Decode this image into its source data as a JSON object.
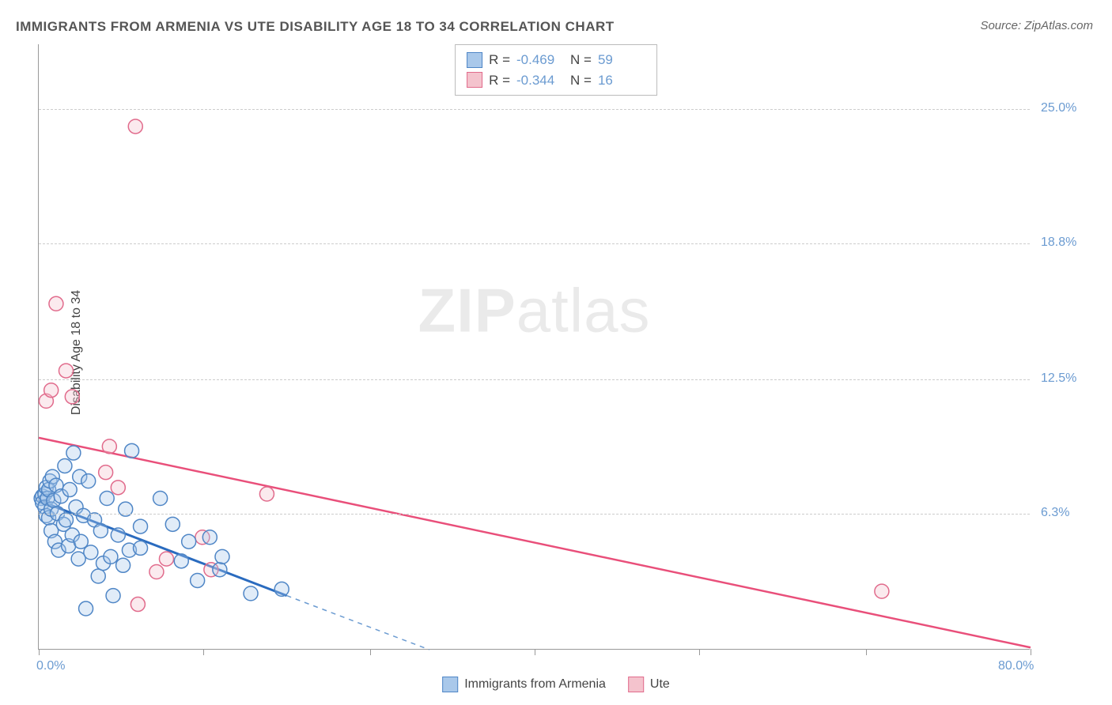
{
  "title": "IMMIGRANTS FROM ARMENIA VS UTE DISABILITY AGE 18 TO 34 CORRELATION CHART",
  "source": "Source: ZipAtlas.com",
  "ylabel": "Disability Age 18 to 34",
  "watermark_a": "ZIP",
  "watermark_b": "atlas",
  "chart": {
    "type": "scatter",
    "xlim": [
      0,
      80
    ],
    "ylim": [
      0,
      28
    ],
    "xtick_positions": [
      0,
      13.3,
      26.7,
      40,
      53.3,
      66.7,
      80
    ],
    "xtick_labels_shown": {
      "0": "0.0%",
      "80": "80.0%"
    },
    "ytick_positions": [
      6.3,
      12.5,
      18.8,
      25.0
    ],
    "ytick_labels": [
      "6.3%",
      "12.5%",
      "18.8%",
      "25.0%"
    ],
    "grid_color": "#cccccc",
    "axis_color": "#999999",
    "background_color": "#ffffff",
    "marker_radius": 9,
    "marker_stroke_width": 1.5,
    "marker_fill_opacity": 0.35,
    "series": [
      {
        "name": "Immigrants from Armenia",
        "color_fill": "#a9c8ea",
        "color_stroke": "#4f86c6",
        "trend_color": "#2a6bbf",
        "trend_width": 3,
        "trend_dash_color": "#6b9bd1",
        "R": "-0.469",
        "N": "59",
        "trend_start": [
          0,
          6.9
        ],
        "trend_solid_end": [
          20,
          2.5
        ],
        "trend_dash_end": [
          31.5,
          0
        ],
        "points": [
          [
            0.2,
            7.0
          ],
          [
            0.3,
            7.1
          ],
          [
            0.3,
            6.8
          ],
          [
            0.5,
            7.2
          ],
          [
            0.5,
            6.6
          ],
          [
            0.6,
            7.5
          ],
          [
            0.6,
            6.2
          ],
          [
            0.7,
            7.0
          ],
          [
            0.8,
            7.4
          ],
          [
            0.8,
            6.1
          ],
          [
            0.9,
            7.8
          ],
          [
            1.0,
            6.5
          ],
          [
            1.0,
            5.5
          ],
          [
            1.1,
            8.0
          ],
          [
            1.2,
            6.9
          ],
          [
            1.3,
            5.0
          ],
          [
            1.4,
            7.6
          ],
          [
            1.5,
            6.3
          ],
          [
            1.6,
            4.6
          ],
          [
            1.8,
            7.1
          ],
          [
            2.0,
            5.8
          ],
          [
            2.1,
            8.5
          ],
          [
            2.2,
            6.0
          ],
          [
            2.4,
            4.8
          ],
          [
            2.5,
            7.4
          ],
          [
            2.7,
            5.3
          ],
          [
            2.8,
            9.1
          ],
          [
            3.0,
            6.6
          ],
          [
            3.2,
            4.2
          ],
          [
            3.3,
            8.0
          ],
          [
            3.4,
            5.0
          ],
          [
            3.6,
            6.2
          ],
          [
            3.8,
            1.9
          ],
          [
            4.0,
            7.8
          ],
          [
            4.2,
            4.5
          ],
          [
            4.5,
            6.0
          ],
          [
            4.8,
            3.4
          ],
          [
            5.0,
            5.5
          ],
          [
            5.2,
            4.0
          ],
          [
            5.5,
            7.0
          ],
          [
            5.8,
            4.3
          ],
          [
            6.0,
            2.5
          ],
          [
            6.4,
            5.3
          ],
          [
            6.8,
            3.9
          ],
          [
            7.0,
            6.5
          ],
          [
            7.3,
            4.6
          ],
          [
            7.5,
            9.2
          ],
          [
            8.2,
            5.7
          ],
          [
            8.2,
            4.7
          ],
          [
            9.8,
            7.0
          ],
          [
            10.8,
            5.8
          ],
          [
            11.5,
            4.1
          ],
          [
            12.1,
            5.0
          ],
          [
            12.8,
            3.2
          ],
          [
            13.8,
            5.2
          ],
          [
            14.6,
            3.7
          ],
          [
            14.8,
            4.3
          ],
          [
            17.1,
            2.6
          ],
          [
            19.6,
            2.8
          ]
        ]
      },
      {
        "name": "Ute",
        "color_fill": "#f4c3cd",
        "color_stroke": "#e16b8c",
        "trend_color": "#e94f7a",
        "trend_width": 2.5,
        "R": "-0.344",
        "N": "16",
        "trend_start": [
          0,
          9.8
        ],
        "trend_solid_end": [
          80,
          0.1
        ],
        "points": [
          [
            0.6,
            11.5
          ],
          [
            1.0,
            12.0
          ],
          [
            1.4,
            16.0
          ],
          [
            2.2,
            12.9
          ],
          [
            2.7,
            11.7
          ],
          [
            5.4,
            8.2
          ],
          [
            5.7,
            9.4
          ],
          [
            6.4,
            7.5
          ],
          [
            7.8,
            24.2
          ],
          [
            8.0,
            2.1
          ],
          [
            9.5,
            3.6
          ],
          [
            10.3,
            4.2
          ],
          [
            13.2,
            5.2
          ],
          [
            13.9,
            3.7
          ],
          [
            18.4,
            7.2
          ],
          [
            68.0,
            2.7
          ]
        ]
      }
    ]
  },
  "stat_legend": {
    "R_label": "R =",
    "N_label": "N ="
  },
  "bottom_legend": {
    "item1": "Immigrants from Armenia",
    "item2": "Ute"
  },
  "colors": {
    "tick_label": "#6b9bd1",
    "blue_fill": "#a9c8ea",
    "blue_stroke": "#4f86c6",
    "pink_fill": "#f4c3cd",
    "pink_stroke": "#e16b8c"
  }
}
